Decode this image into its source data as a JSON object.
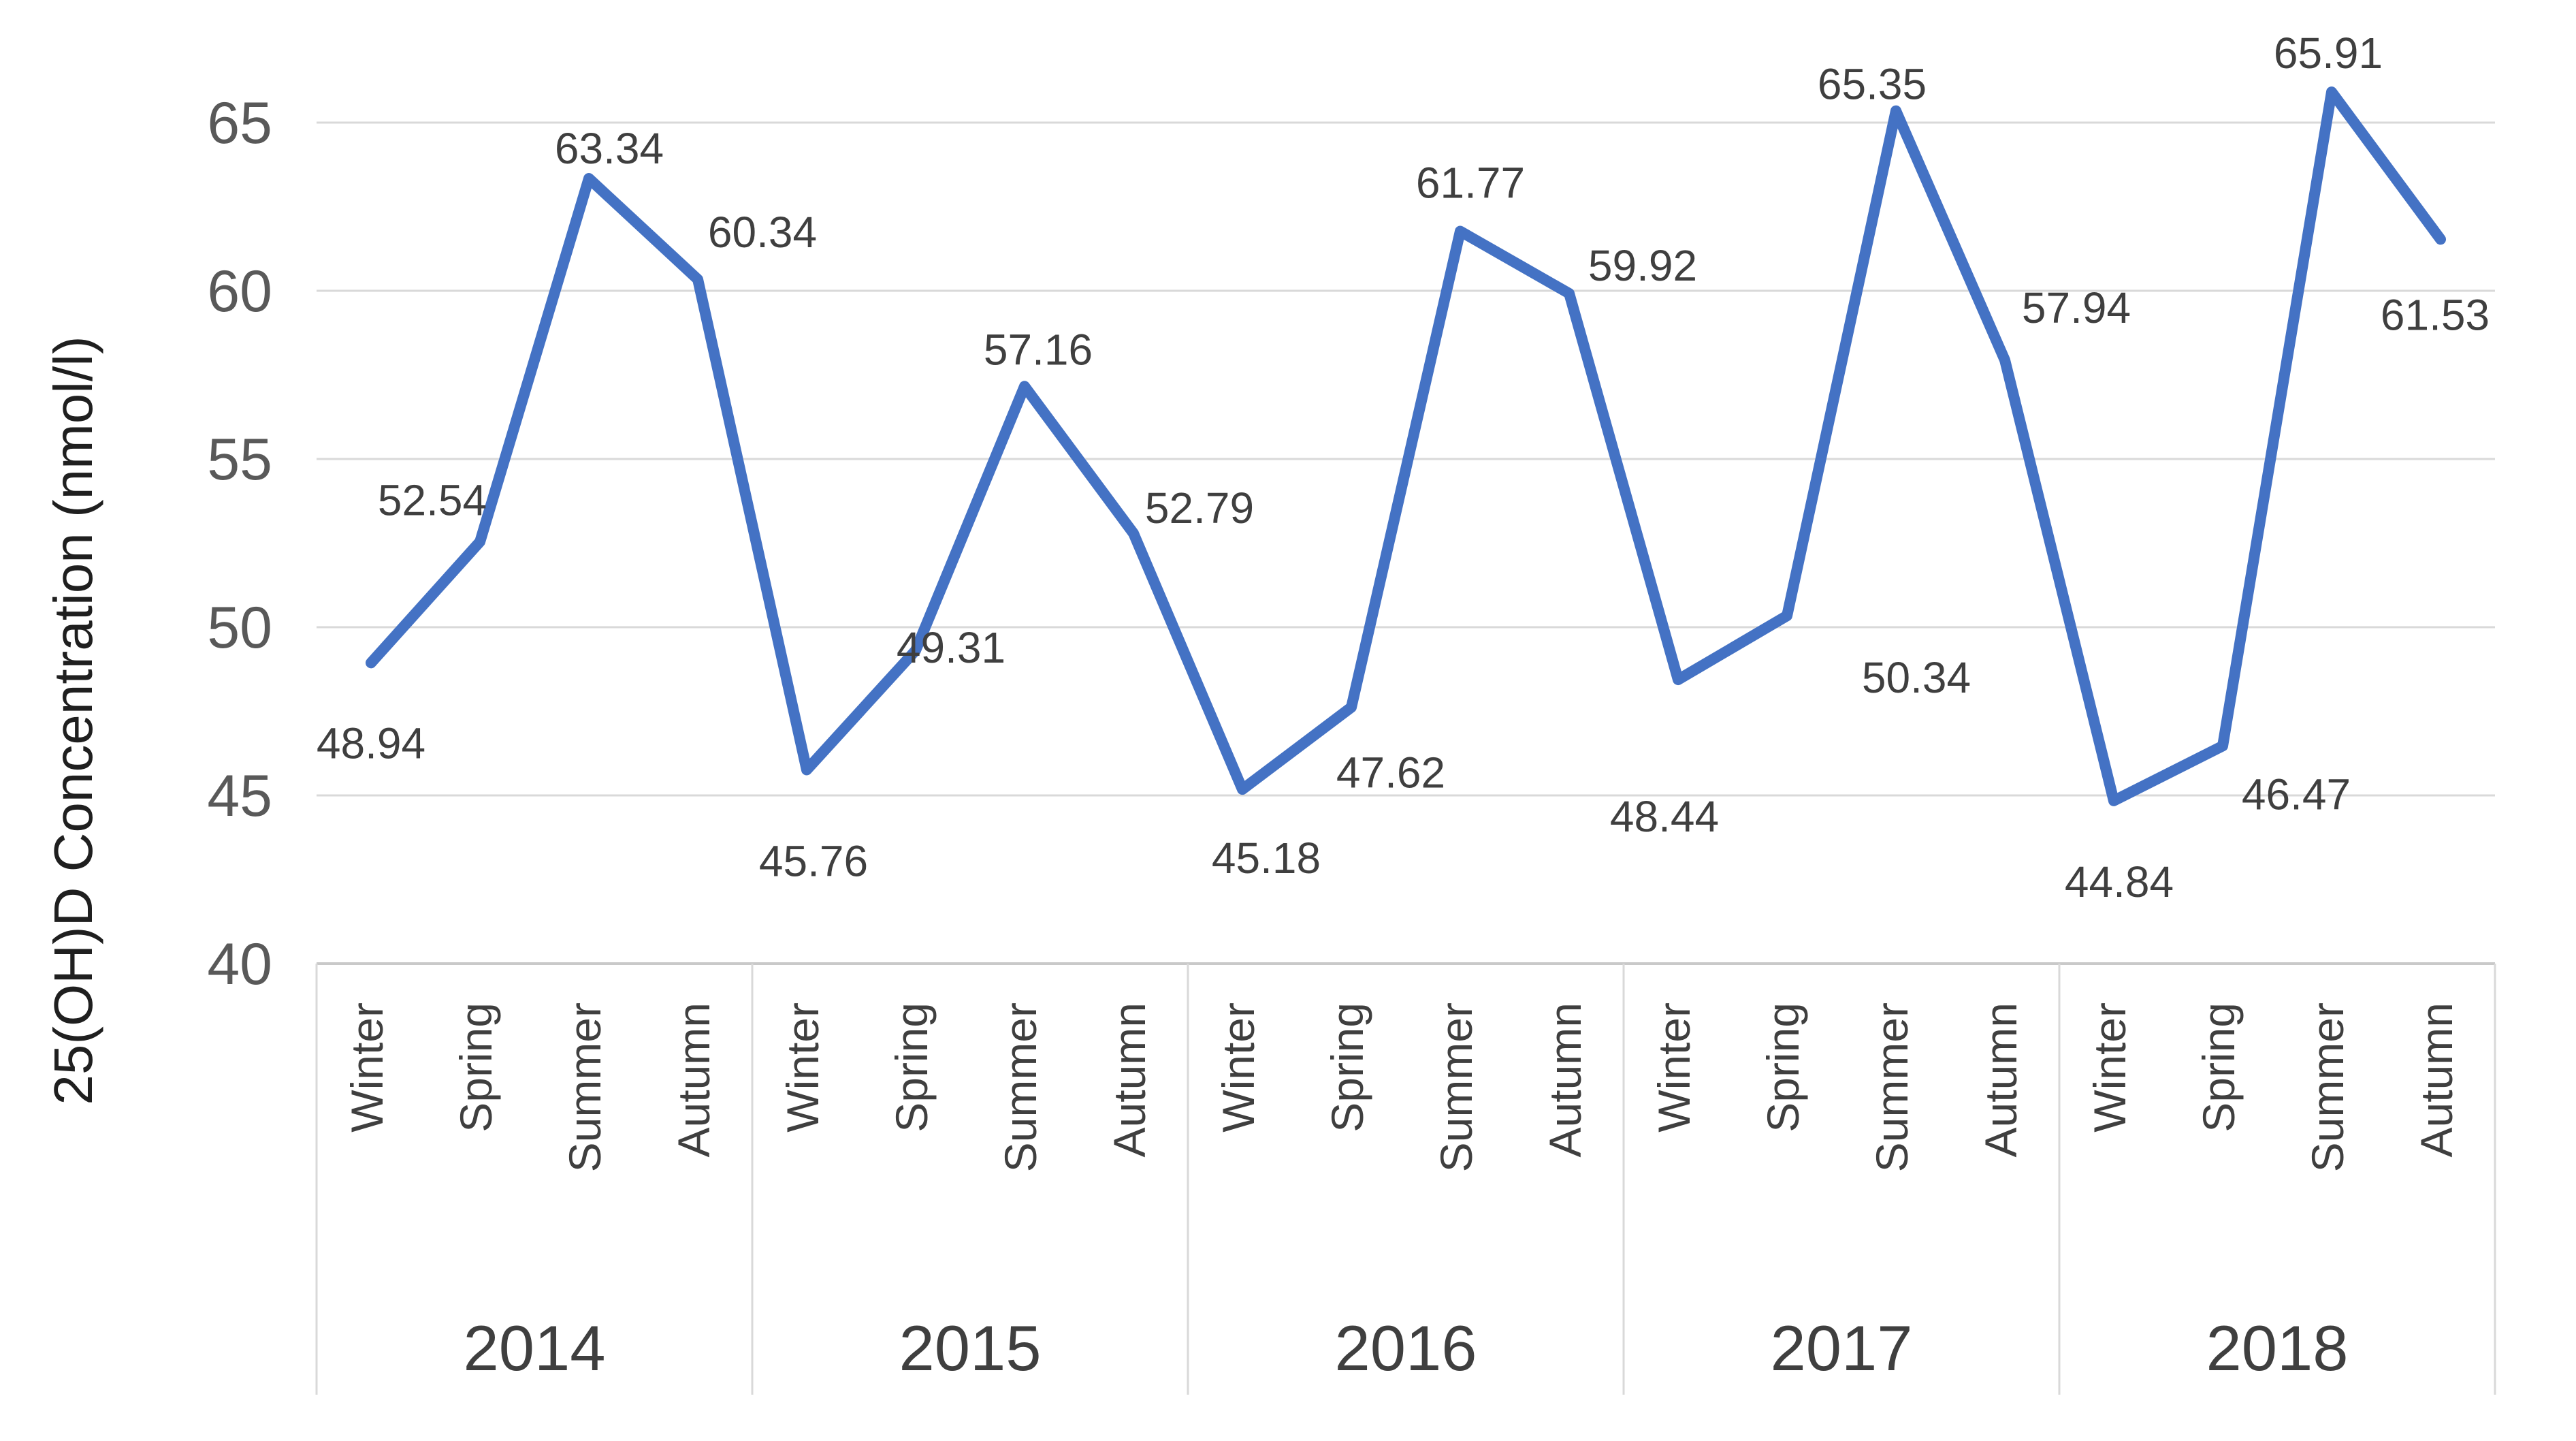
{
  "chart_data": {
    "type": "line",
    "title": "",
    "xlabel": "",
    "ylabel": "25(OH)D Concentration (nmol/l)",
    "ylim": [
      40,
      67
    ],
    "yticks": [
      "40",
      "45",
      "50",
      "55",
      "60",
      "65"
    ],
    "grid": true,
    "legend": "none",
    "line_color": "#4472C4",
    "gridline_color": "#D9D9D9",
    "axis_line_color": "#C9C9C9",
    "tick_label_color": "#595959",
    "data_label_color": "#3F3F3F",
    "category_label_color": "#3F3F3F",
    "categories_years": [
      "2014",
      "2015",
      "2016",
      "2017",
      "2018"
    ],
    "categories_seasons": [
      "Winter",
      "Spring",
      "Summer",
      "Autumn"
    ],
    "series": [
      {
        "name": "25(OH)D Concentration",
        "points": [
          {
            "year": "2014",
            "season": "Winter",
            "value": 48.94,
            "label": "48.94",
            "dx": 0,
            "dy": 117
          },
          {
            "year": "2014",
            "season": "Spring",
            "value": 52.54,
            "label": "52.54",
            "dx": -70,
            "dy": -62
          },
          {
            "year": "2014",
            "season": "Summer",
            "value": 63.34,
            "label": "63.34",
            "dx": 30,
            "dy": -45
          },
          {
            "year": "2014",
            "season": "Autumn",
            "value": 60.34,
            "label": "60.34",
            "dx": 95,
            "dy": -70
          },
          {
            "year": "2015",
            "season": "Winter",
            "value": 45.76,
            "label": "45.76",
            "dx": 10,
            "dy": 133
          },
          {
            "year": "2015",
            "season": "Spring",
            "value": 49.31,
            "label": "49.31",
            "dx": 52,
            "dy": -5
          },
          {
            "year": "2015",
            "season": "Summer",
            "value": 57.16,
            "label": "57.16",
            "dx": 20,
            "dy": -55
          },
          {
            "year": "2015",
            "season": "Autumn",
            "value": 52.79,
            "label": "52.79",
            "dx": 97,
            "dy": -38
          },
          {
            "year": "2016",
            "season": "Winter",
            "value": 45.18,
            "label": "45.18",
            "dx": 35,
            "dy": 100
          },
          {
            "year": "2016",
            "season": "Spring",
            "value": 47.62,
            "label": "47.62",
            "dx": 58,
            "dy": 95
          },
          {
            "year": "2016",
            "season": "Summer",
            "value": 61.77,
            "label": "61.77",
            "dx": 15,
            "dy": -72
          },
          {
            "year": "2016",
            "season": "Autumn",
            "value": 59.92,
            "label": "59.92",
            "dx": 108,
            "dy": -42
          },
          {
            "year": "2017",
            "season": "Winter",
            "value": 48.44,
            "label": "48.44",
            "dx": -20,
            "dy": 200
          },
          {
            "year": "2017",
            "season": "Spring",
            "value": 50.34,
            "label": "50.34",
            "dx": 190,
            "dy": 90
          },
          {
            "year": "2017",
            "season": "Summer",
            "value": 65.35,
            "label": "65.35",
            "dx": -35,
            "dy": -40
          },
          {
            "year": "2017",
            "season": "Autumn",
            "value": 57.94,
            "label": "57.94",
            "dx": 105,
            "dy": -78
          },
          {
            "year": "2018",
            "season": "Winter",
            "value": 44.84,
            "label": "44.84",
            "dx": 8,
            "dy": 118
          },
          {
            "year": "2018",
            "season": "Spring",
            "value": 46.47,
            "label": "46.47",
            "dx": 108,
            "dy": 70
          },
          {
            "year": "2018",
            "season": "Summer",
            "value": 65.91,
            "label": "65.91",
            "dx": -5,
            "dy": -58
          },
          {
            "year": "2018",
            "season": "Autumn",
            "value": 61.53,
            "label": "61.53",
            "dx": -8,
            "dy": 110
          }
        ]
      }
    ]
  }
}
